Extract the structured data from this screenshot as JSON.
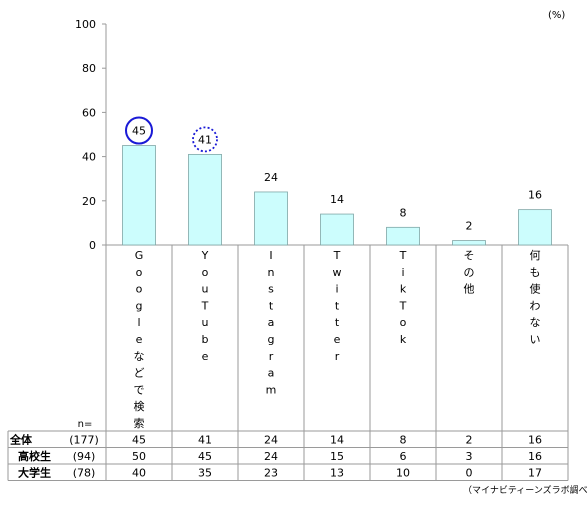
{
  "chart_data": {
    "type": "bar",
    "unit": "(%)",
    "ylim": [
      0,
      100
    ],
    "yticks": [
      0,
      20,
      40,
      60,
      80,
      100
    ],
    "categories": [
      "Googleなどで検索",
      "YouTube",
      "Instagram",
      "Twitter",
      "TikTok",
      "その他",
      "何も使わない"
    ],
    "values": [
      45,
      41,
      24,
      14,
      8,
      2,
      16
    ],
    "highlights": [
      {
        "category": "Googleなどで検索",
        "style": "solid",
        "color": "#1a1ad6"
      },
      {
        "category": "YouTube",
        "style": "dotted",
        "color": "#1a1ad6"
      }
    ],
    "bar_color": "#ccfdfd",
    "bar_border": "#7fa6a6",
    "table": {
      "n_label": "n=",
      "rows": [
        {
          "label": "全体",
          "n": "(177)",
          "values": [
            45,
            41,
            24,
            14,
            8,
            2,
            16
          ]
        },
        {
          "label": "高校生",
          "n": "(94)",
          "values": [
            50,
            45,
            24,
            15,
            6,
            3,
            16
          ]
        },
        {
          "label": "大学生",
          "n": "(78)",
          "values": [
            40,
            35,
            23,
            13,
            10,
            0,
            17
          ]
        }
      ]
    },
    "source": "（マイナビティーンズラボ調べ）"
  }
}
